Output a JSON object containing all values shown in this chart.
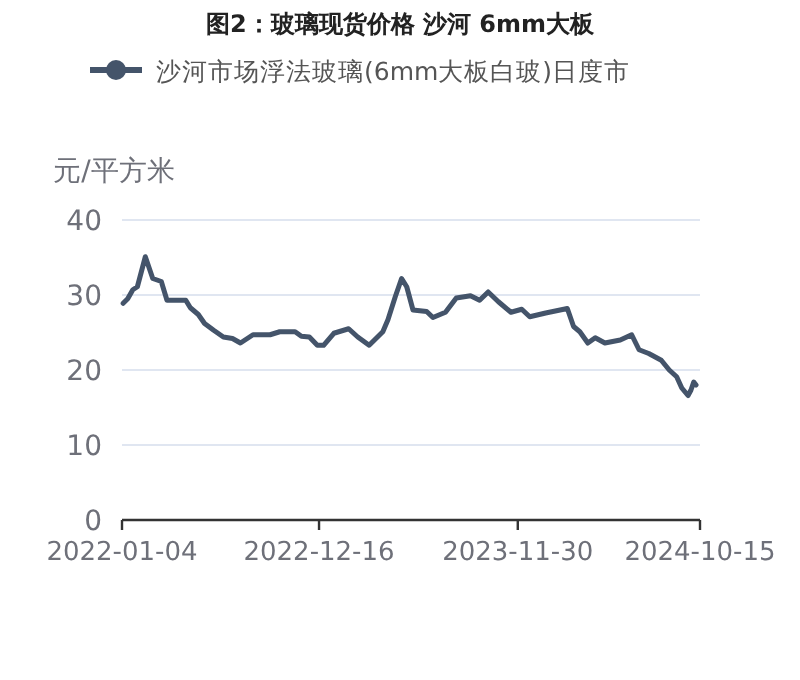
{
  "chart_data": {
    "type": "line",
    "title": "图2：玻璃现货价格 沙河 6mm大板",
    "ylabel": "元/平方米",
    "x": [
      "2022-01-06",
      "2022-01-14",
      "2022-01-23",
      "2022-01-31",
      "2022-02-14",
      "2022-02-27",
      "2022-03-14",
      "2022-03-24",
      "2022-04-26",
      "2022-05-04",
      "2022-05-18",
      "2022-05-29",
      "2022-06-14",
      "2022-07-01",
      "2022-07-17",
      "2022-07-31",
      "2022-08-22",
      "2022-09-21",
      "2022-10-08",
      "2022-11-04",
      "2022-11-15",
      "2022-11-29",
      "2022-12-13",
      "2022-12-24",
      "2023-01-11",
      "2023-02-06",
      "2023-02-22",
      "2023-03-14",
      "2023-04-07",
      "2023-04-16",
      "2023-04-29",
      "2023-05-10",
      "2023-05-19",
      "2023-05-30",
      "2023-06-23",
      "2023-07-04",
      "2023-07-26",
      "2023-08-14",
      "2023-09-08",
      "2023-09-24",
      "2023-10-09",
      "2023-10-27",
      "2023-11-18",
      "2023-12-07",
      "2023-12-21",
      "2024-01-18",
      "2024-02-25",
      "2024-03-07",
      "2024-03-18",
      "2024-04-01",
      "2024-04-14",
      "2024-05-01",
      "2024-05-28",
      "2024-06-17",
      "2024-06-30",
      "2024-07-17",
      "2024-08-08",
      "2024-08-22",
      "2024-09-04",
      "2024-09-13",
      "2024-09-24",
      "2024-09-29",
      "2024-10-04",
      "2024-10-08"
    ],
    "series": [
      {
        "name": "沙河市场浮法玻璃(6mm大板白玻)日度市",
        "color": "#44546a",
        "values": [
          28.9,
          29.5,
          30.7,
          31.1,
          35.1,
          32.2,
          31.8,
          29.3,
          29.3,
          28.3,
          27.4,
          26.2,
          25.3,
          24.4,
          24.2,
          23.6,
          24.7,
          24.7,
          25.1,
          25.1,
          24.5,
          24.4,
          23.3,
          23.3,
          24.9,
          25.5,
          24.4,
          23.3,
          25.1,
          26.7,
          29.8,
          32.2,
          31.1,
          28.0,
          27.8,
          27.0,
          27.7,
          29.6,
          29.9,
          29.3,
          30.4,
          29.1,
          27.7,
          28.1,
          27.1,
          27.6,
          28.2,
          25.8,
          25.1,
          23.6,
          24.3,
          23.6,
          24.0,
          24.7,
          22.7,
          22.2,
          21.3,
          20.0,
          19.1,
          17.6,
          16.6,
          17.3,
          18.4,
          18.0
        ]
      }
    ],
    "xlim": [
      "2022-01-04",
      "2024-10-15"
    ],
    "xticks": [
      "2022-01-04",
      "2022-12-16",
      "2023-11-30",
      "2024-10-15"
    ],
    "ylim": [
      0,
      40
    ],
    "yticks": [
      0,
      10,
      20,
      30,
      40
    ],
    "grid": "y",
    "legend": "top",
    "marker": "none",
    "line_style": "solid"
  }
}
